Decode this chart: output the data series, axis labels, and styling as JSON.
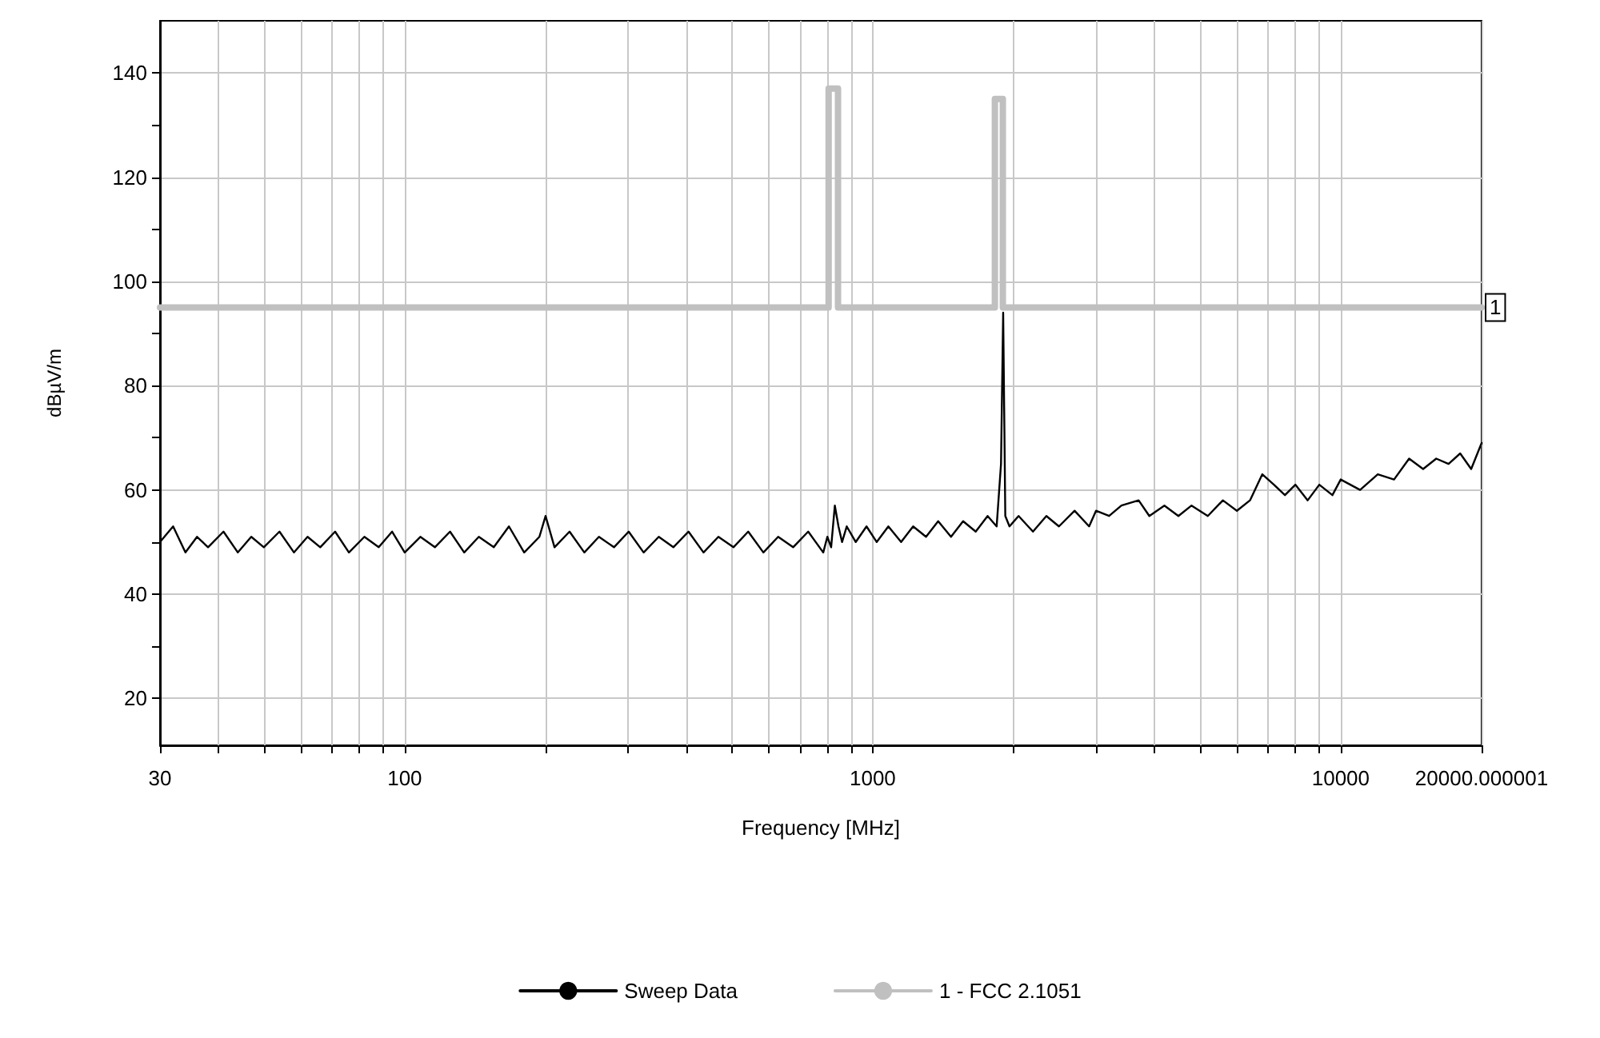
{
  "chart_data": {
    "type": "line",
    "xlabel": "Frequency [MHz]",
    "ylabel": "dBµV/m",
    "log": "x",
    "grid": true,
    "legend": "bottom",
    "marker": "none",
    "line_style": "solid",
    "xlim": [
      30,
      20000.000001
    ],
    "ylim": [
      11,
      150
    ],
    "xticks": [
      30,
      {
        "value": 40,
        "label": null
      },
      {
        "value": 50,
        "label": null
      },
      {
        "value": 60,
        "label": null
      },
      {
        "value": 70,
        "label": null
      },
      {
        "value": 80,
        "label": null
      },
      {
        "value": 90,
        "label": null
      },
      100,
      {
        "value": 200,
        "label": null
      },
      {
        "value": 300,
        "label": null
      },
      {
        "value": 400,
        "label": null
      },
      {
        "value": 500,
        "label": null
      },
      {
        "value": 600,
        "label": null
      },
      {
        "value": 700,
        "label": null
      },
      {
        "value": 800,
        "label": null
      },
      {
        "value": 900,
        "label": null
      },
      1000,
      {
        "value": 2000,
        "label": null
      },
      {
        "value": 3000,
        "label": null
      },
      {
        "value": 4000,
        "label": null
      },
      {
        "value": 5000,
        "label": null
      },
      {
        "value": 6000,
        "label": null
      },
      {
        "value": 7000,
        "label": null
      },
      {
        "value": 8000,
        "label": null
      },
      {
        "value": 9000,
        "label": null
      },
      10000,
      20000.000001
    ],
    "yticks": [
      20,
      {
        "value": 30,
        "label": null
      },
      40,
      {
        "value": 50,
        "label": null
      },
      60,
      {
        "value": 70,
        "label": null
      },
      80,
      {
        "value": 90,
        "label": null
      },
      100,
      {
        "value": 110,
        "label": null
      },
      120,
      {
        "value": 130,
        "label": null
      },
      140
    ],
    "annotations": [
      {
        "text": "1",
        "x": 20000.000001,
        "y": 95
      }
    ],
    "series": [
      {
        "name": "Sweep Data",
        "color": "#000000",
        "x": [
          30,
          32,
          34,
          36,
          38,
          41,
          44,
          47,
          50,
          54,
          58,
          62,
          66,
          71,
          76,
          82,
          88,
          94,
          100,
          108,
          116,
          125,
          134,
          144,
          155,
          167,
          180,
          194,
          200,
          209,
          225,
          242,
          260,
          280,
          301,
          324,
          349,
          375,
          404,
          435,
          468,
          504,
          542,
          584,
          628,
          676,
          728,
          784,
          800,
          815,
          830,
          845,
          860,
          880,
          920,
          970,
          1020,
          1080,
          1150,
          1220,
          1300,
          1380,
          1470,
          1560,
          1660,
          1760,
          1840,
          1880,
          1900,
          1920,
          1960,
          2050,
          2200,
          2350,
          2500,
          2700,
          2900,
          3000,
          3200,
          3400,
          3700,
          3900,
          4200,
          4500,
          4800,
          5200,
          5600,
          6000,
          6400,
          6800,
          7200,
          7600,
          8000,
          8500,
          9000,
          9600,
          10000,
          11000,
          12000,
          13000,
          14000,
          15000,
          16000,
          17000,
          18000,
          19000,
          20000
        ],
        "values": [
          50,
          53,
          48,
          51,
          49,
          52,
          48,
          51,
          49,
          52,
          48,
          51,
          49,
          52,
          48,
          51,
          49,
          52,
          48,
          51,
          49,
          52,
          48,
          51,
          49,
          53,
          48,
          51,
          55,
          49,
          52,
          48,
          51,
          49,
          52,
          48,
          51,
          49,
          52,
          48,
          51,
          49,
          52,
          48,
          51,
          49,
          52,
          48,
          51,
          49,
          57,
          53,
          50,
          53,
          50,
          53,
          50,
          53,
          50,
          53,
          51,
          54,
          51,
          54,
          52,
          55,
          53,
          65,
          94,
          55,
          53,
          55,
          52,
          55,
          53,
          56,
          53,
          56,
          55,
          57,
          58,
          55,
          57,
          55,
          57,
          55,
          58,
          56,
          58,
          63,
          61,
          59,
          61,
          58,
          61,
          59,
          62,
          60,
          63,
          62,
          66,
          64,
          66,
          65,
          67,
          64,
          69
        ]
      },
      {
        "name": "1 - FCC 2.1051",
        "color": "#c0c0c0",
        "x": [
          30,
          805,
          805,
          843,
          843,
          1824,
          1824,
          1897,
          1897,
          20000.000001
        ],
        "values": [
          95,
          95,
          137,
          137,
          95,
          95,
          135,
          135,
          95,
          95
        ]
      }
    ]
  }
}
